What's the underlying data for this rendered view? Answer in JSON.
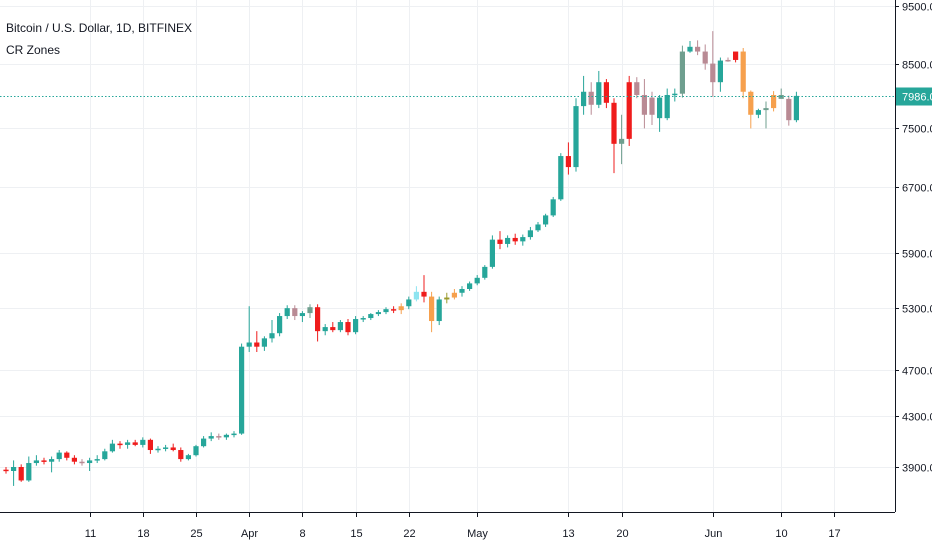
{
  "legend": {
    "title": "Bitcoin / U.S. Dollar, 1D, BITFINEX",
    "indicator": "CR Zones"
  },
  "colors": {
    "up": "#26a69a",
    "down": "#ef1c1c",
    "orange": "#f6a04d",
    "cyan": "#8de4f0",
    "olive": "#9a9a2a",
    "gray_up": "#6f9f8f",
    "gray_down": "#b98a94",
    "grid": "#eef0f3",
    "axis": "#131722",
    "price_line": "#26a69a"
  },
  "chart_data": {
    "type": "candlestick",
    "symbol": "Bitcoin / U.S. Dollar",
    "interval": "1D",
    "exchange": "BITFINEX",
    "price_axis": {
      "ticks": [
        "9500.0",
        "8500.0",
        "7500.0",
        "6700.0",
        "5900.0",
        "5300.0",
        "4700.0",
        "4300.0",
        "3900.0"
      ],
      "scale": "log"
    },
    "time_axis": {
      "ticks": [
        {
          "label": "11",
          "day": 11
        },
        {
          "label": "18",
          "day": 18
        },
        {
          "label": "25",
          "day": 25
        },
        {
          "label": "Apr",
          "day": 32
        },
        {
          "label": "8",
          "day": 39
        },
        {
          "label": "15",
          "day": 46
        },
        {
          "label": "22",
          "day": 53
        },
        {
          "label": "May",
          "day": 62
        },
        {
          "label": "13",
          "day": 74
        },
        {
          "label": "20",
          "day": 81
        },
        {
          "label": "Jun",
          "day": 93
        },
        {
          "label": "10",
          "day": 102
        },
        {
          "label": "17",
          "day": 109
        }
      ]
    },
    "last_price": "7986.0",
    "last_price_value": 7986,
    "candles": [
      {
        "d": 0,
        "o": 3880,
        "h": 3900,
        "l": 3850,
        "c": 3870,
        "z": "down"
      },
      {
        "d": 1,
        "o": 3870,
        "h": 3950,
        "l": 3760,
        "c": 3900,
        "z": "up"
      },
      {
        "d": 2,
        "o": 3900,
        "h": 3920,
        "l": 3790,
        "c": 3800,
        "z": "down"
      },
      {
        "d": 3,
        "o": 3800,
        "h": 3980,
        "l": 3790,
        "c": 3930,
        "z": "up"
      },
      {
        "d": 4,
        "o": 3930,
        "h": 3990,
        "l": 3910,
        "c": 3950,
        "z": "up"
      },
      {
        "d": 5,
        "o": 3950,
        "h": 3970,
        "l": 3920,
        "c": 3940,
        "z": "down"
      },
      {
        "d": 6,
        "o": 3940,
        "h": 3980,
        "l": 3860,
        "c": 3960,
        "z": "up"
      },
      {
        "d": 7,
        "o": 3960,
        "h": 4030,
        "l": 3940,
        "c": 4010,
        "z": "up"
      },
      {
        "d": 8,
        "o": 4010,
        "h": 4020,
        "l": 3950,
        "c": 3970,
        "z": "down"
      },
      {
        "d": 9,
        "o": 3970,
        "h": 3990,
        "l": 3920,
        "c": 3940,
        "z": "down"
      },
      {
        "d": 10,
        "o": 3940,
        "h": 3960,
        "l": 3910,
        "c": 3930,
        "z": "gray_down"
      },
      {
        "d": 11,
        "o": 3930,
        "h": 3970,
        "l": 3870,
        "c": 3950,
        "z": "up"
      },
      {
        "d": 12,
        "o": 3950,
        "h": 3990,
        "l": 3930,
        "c": 3960,
        "z": "up"
      },
      {
        "d": 13,
        "o": 3960,
        "h": 4040,
        "l": 3950,
        "c": 4020,
        "z": "up"
      },
      {
        "d": 14,
        "o": 4020,
        "h": 4110,
        "l": 4010,
        "c": 4080,
        "z": "up"
      },
      {
        "d": 15,
        "o": 4080,
        "h": 4100,
        "l": 4040,
        "c": 4070,
        "z": "down"
      },
      {
        "d": 16,
        "o": 4070,
        "h": 4110,
        "l": 4040,
        "c": 4090,
        "z": "up"
      },
      {
        "d": 17,
        "o": 4090,
        "h": 4110,
        "l": 4060,
        "c": 4070,
        "z": "down"
      },
      {
        "d": 18,
        "o": 4070,
        "h": 4130,
        "l": 4050,
        "c": 4110,
        "z": "up"
      },
      {
        "d": 19,
        "o": 4110,
        "h": 4120,
        "l": 4000,
        "c": 4030,
        "z": "down"
      },
      {
        "d": 20,
        "o": 4030,
        "h": 4060,
        "l": 4010,
        "c": 4040,
        "z": "up"
      },
      {
        "d": 21,
        "o": 4040,
        "h": 4070,
        "l": 4020,
        "c": 4050,
        "z": "up"
      },
      {
        "d": 22,
        "o": 4050,
        "h": 4080,
        "l": 4020,
        "c": 4030,
        "z": "down"
      },
      {
        "d": 23,
        "o": 4030,
        "h": 4050,
        "l": 3940,
        "c": 3960,
        "z": "down"
      },
      {
        "d": 24,
        "o": 3960,
        "h": 4000,
        "l": 3950,
        "c": 3990,
        "z": "up"
      },
      {
        "d": 25,
        "o": 3990,
        "h": 4070,
        "l": 3980,
        "c": 4060,
        "z": "up"
      },
      {
        "d": 26,
        "o": 4060,
        "h": 4140,
        "l": 4050,
        "c": 4120,
        "z": "up"
      },
      {
        "d": 27,
        "o": 4120,
        "h": 4170,
        "l": 4100,
        "c": 4140,
        "z": "up"
      },
      {
        "d": 28,
        "o": 4140,
        "h": 4160,
        "l": 4110,
        "c": 4130,
        "z": "gray_down"
      },
      {
        "d": 29,
        "o": 4130,
        "h": 4160,
        "l": 4110,
        "c": 4150,
        "z": "up"
      },
      {
        "d": 30,
        "o": 4150,
        "h": 4180,
        "l": 4130,
        "c": 4160,
        "z": "up"
      },
      {
        "d": 31,
        "o": 4160,
        "h": 4950,
        "l": 4150,
        "c": 4920,
        "z": "up"
      },
      {
        "d": 32,
        "o": 4920,
        "h": 5320,
        "l": 4870,
        "c": 4960,
        "z": "up"
      },
      {
        "d": 33,
        "o": 4960,
        "h": 5070,
        "l": 4870,
        "c": 4920,
        "z": "down"
      },
      {
        "d": 34,
        "o": 4920,
        "h": 5020,
        "l": 4880,
        "c": 5000,
        "z": "up"
      },
      {
        "d": 35,
        "o": 5000,
        "h": 5180,
        "l": 4960,
        "c": 5050,
        "z": "up"
      },
      {
        "d": 36,
        "o": 5050,
        "h": 5250,
        "l": 5020,
        "c": 5220,
        "z": "up"
      },
      {
        "d": 37,
        "o": 5220,
        "h": 5330,
        "l": 5190,
        "c": 5300,
        "z": "up"
      },
      {
        "d": 38,
        "o": 5300,
        "h": 5330,
        "l": 5180,
        "c": 5220,
        "z": "gray_down"
      },
      {
        "d": 39,
        "o": 5220,
        "h": 5270,
        "l": 5160,
        "c": 5250,
        "z": "up"
      },
      {
        "d": 40,
        "o": 5250,
        "h": 5340,
        "l": 5200,
        "c": 5310,
        "z": "gray_up"
      },
      {
        "d": 41,
        "o": 5310,
        "h": 5340,
        "l": 4970,
        "c": 5070,
        "z": "down"
      },
      {
        "d": 42,
        "o": 5070,
        "h": 5140,
        "l": 5030,
        "c": 5110,
        "z": "up"
      },
      {
        "d": 43,
        "o": 5110,
        "h": 5160,
        "l": 5060,
        "c": 5080,
        "z": "down"
      },
      {
        "d": 44,
        "o": 5080,
        "h": 5180,
        "l": 5060,
        "c": 5160,
        "z": "up"
      },
      {
        "d": 45,
        "o": 5160,
        "h": 5190,
        "l": 5030,
        "c": 5060,
        "z": "down"
      },
      {
        "d": 46,
        "o": 5060,
        "h": 5220,
        "l": 5040,
        "c": 5190,
        "z": "up"
      },
      {
        "d": 47,
        "o": 5190,
        "h": 5220,
        "l": 5160,
        "c": 5200,
        "z": "up"
      },
      {
        "d": 48,
        "o": 5200,
        "h": 5250,
        "l": 5180,
        "c": 5240,
        "z": "up"
      },
      {
        "d": 49,
        "o": 5240,
        "h": 5280,
        "l": 5220,
        "c": 5260,
        "z": "up"
      },
      {
        "d": 50,
        "o": 5260,
        "h": 5310,
        "l": 5240,
        "c": 5290,
        "z": "up"
      },
      {
        "d": 51,
        "o": 5290,
        "h": 5320,
        "l": 5250,
        "c": 5280,
        "z": "down"
      },
      {
        "d": 52,
        "o": 5280,
        "h": 5350,
        "l": 5240,
        "c": 5320,
        "z": "orange"
      },
      {
        "d": 53,
        "o": 5320,
        "h": 5420,
        "l": 5290,
        "c": 5390,
        "z": "up"
      },
      {
        "d": 54,
        "o": 5390,
        "h": 5530,
        "l": 5370,
        "c": 5470,
        "z": "cyan"
      },
      {
        "d": 55,
        "o": 5470,
        "h": 5650,
        "l": 5360,
        "c": 5420,
        "z": "down"
      },
      {
        "d": 56,
        "o": 5420,
        "h": 5470,
        "l": 5060,
        "c": 5170,
        "z": "orange"
      },
      {
        "d": 57,
        "o": 5170,
        "h": 5420,
        "l": 5130,
        "c": 5390,
        "z": "up"
      },
      {
        "d": 58,
        "o": 5390,
        "h": 5460,
        "l": 5350,
        "c": 5410,
        "z": "olive"
      },
      {
        "d": 59,
        "o": 5410,
        "h": 5500,
        "l": 5390,
        "c": 5460,
        "z": "orange"
      },
      {
        "d": 60,
        "o": 5460,
        "h": 5530,
        "l": 5420,
        "c": 5500,
        "z": "up"
      },
      {
        "d": 61,
        "o": 5500,
        "h": 5580,
        "l": 5480,
        "c": 5560,
        "z": "up"
      },
      {
        "d": 62,
        "o": 5560,
        "h": 5650,
        "l": 5540,
        "c": 5620,
        "z": "up"
      },
      {
        "d": 63,
        "o": 5620,
        "h": 5760,
        "l": 5600,
        "c": 5740,
        "z": "up"
      },
      {
        "d": 64,
        "o": 5740,
        "h": 6100,
        "l": 5720,
        "c": 6050,
        "z": "up"
      },
      {
        "d": 65,
        "o": 6050,
        "h": 6150,
        "l": 5940,
        "c": 6000,
        "z": "down"
      },
      {
        "d": 66,
        "o": 6000,
        "h": 6100,
        "l": 5960,
        "c": 6070,
        "z": "up"
      },
      {
        "d": 67,
        "o": 6070,
        "h": 6120,
        "l": 5990,
        "c": 6030,
        "z": "down"
      },
      {
        "d": 68,
        "o": 6030,
        "h": 6110,
        "l": 5980,
        "c": 6080,
        "z": "up"
      },
      {
        "d": 69,
        "o": 6080,
        "h": 6200,
        "l": 6050,
        "c": 6160,
        "z": "up"
      },
      {
        "d": 70,
        "o": 6160,
        "h": 6260,
        "l": 6140,
        "c": 6230,
        "z": "up"
      },
      {
        "d": 71,
        "o": 6230,
        "h": 6360,
        "l": 6200,
        "c": 6340,
        "z": "up"
      },
      {
        "d": 72,
        "o": 6340,
        "h": 6570,
        "l": 6320,
        "c": 6540,
        "z": "up"
      },
      {
        "d": 73,
        "o": 6540,
        "h": 7150,
        "l": 6520,
        "c": 7110,
        "z": "up"
      },
      {
        "d": 74,
        "o": 7110,
        "h": 7300,
        "l": 6860,
        "c": 6960,
        "z": "down"
      },
      {
        "d": 75,
        "o": 6960,
        "h": 7950,
        "l": 6900,
        "c": 7830,
        "z": "up"
      },
      {
        "d": 76,
        "o": 7830,
        "h": 8300,
        "l": 7700,
        "c": 8050,
        "z": "up"
      },
      {
        "d": 77,
        "o": 8050,
        "h": 8200,
        "l": 7700,
        "c": 7850,
        "z": "gray_down"
      },
      {
        "d": 78,
        "o": 7850,
        "h": 8380,
        "l": 7800,
        "c": 8200,
        "z": "up"
      },
      {
        "d": 79,
        "o": 8200,
        "h": 8250,
        "l": 7800,
        "c": 7880,
        "z": "down"
      },
      {
        "d": 80,
        "o": 7880,
        "h": 7950,
        "l": 6880,
        "c": 7280,
        "z": "down"
      },
      {
        "d": 81,
        "o": 7280,
        "h": 7700,
        "l": 7000,
        "c": 7350,
        "z": "gray_up"
      },
      {
        "d": 82,
        "o": 7350,
        "h": 8300,
        "l": 7250,
        "c": 8200,
        "z": "down"
      },
      {
        "d": 83,
        "o": 8200,
        "h": 8280,
        "l": 7950,
        "c": 8000,
        "z": "gray_down"
      },
      {
        "d": 84,
        "o": 8000,
        "h": 8250,
        "l": 7500,
        "c": 7700,
        "z": "gray_down"
      },
      {
        "d": 85,
        "o": 7700,
        "h": 8050,
        "l": 7550,
        "c": 7960,
        "z": "gray_down"
      },
      {
        "d": 86,
        "o": 7960,
        "h": 8000,
        "l": 7450,
        "c": 7650,
        "z": "up"
      },
      {
        "d": 87,
        "o": 7650,
        "h": 8100,
        "l": 7620,
        "c": 8000,
        "z": "up"
      },
      {
        "d": 88,
        "o": 8000,
        "h": 8100,
        "l": 7900,
        "c": 8020,
        "z": "up"
      },
      {
        "d": 89,
        "o": 8020,
        "h": 8800,
        "l": 7960,
        "c": 8700,
        "z": "gray_up"
      },
      {
        "d": 90,
        "o": 8700,
        "h": 8880,
        "l": 8680,
        "c": 8780,
        "z": "up"
      },
      {
        "d": 91,
        "o": 8780,
        "h": 8890,
        "l": 8640,
        "c": 8700,
        "z": "gray_down"
      },
      {
        "d": 92,
        "o": 8700,
        "h": 8820,
        "l": 8400,
        "c": 8500,
        "z": "gray_down"
      },
      {
        "d": 93,
        "o": 8500,
        "h": 9050,
        "l": 7970,
        "c": 8200,
        "z": "gray_down"
      },
      {
        "d": 94,
        "o": 8200,
        "h": 8600,
        "l": 8050,
        "c": 8550,
        "z": "up"
      },
      {
        "d": 95,
        "o": 8550,
        "h": 8600,
        "l": 8530,
        "c": 8560,
        "z": "gray_down"
      },
      {
        "d": 96,
        "o": 8560,
        "h": 8680,
        "l": 8520,
        "c": 8700,
        "z": "down"
      },
      {
        "d": 97,
        "o": 8700,
        "h": 8760,
        "l": 7950,
        "c": 8050,
        "z": "orange"
      },
      {
        "d": 98,
        "o": 8050,
        "h": 8070,
        "l": 7500,
        "c": 7700,
        "z": "orange"
      },
      {
        "d": 99,
        "o": 7700,
        "h": 7790,
        "l": 7650,
        "c": 7770,
        "z": "up"
      },
      {
        "d": 100,
        "o": 7770,
        "h": 7900,
        "l": 7500,
        "c": 7800,
        "z": "gray_up"
      },
      {
        "d": 101,
        "o": 7800,
        "h": 8060,
        "l": 7750,
        "c": 8000,
        "z": "orange"
      },
      {
        "d": 102,
        "o": 8000,
        "h": 8100,
        "l": 7980,
        "c": 7940,
        "z": "gray_up"
      },
      {
        "d": 103,
        "o": 7940,
        "h": 7990,
        "l": 7540,
        "c": 7620,
        "z": "gray_down"
      },
      {
        "d": 104,
        "o": 7620,
        "h": 8050,
        "l": 7590,
        "c": 7986,
        "z": "up"
      }
    ]
  }
}
